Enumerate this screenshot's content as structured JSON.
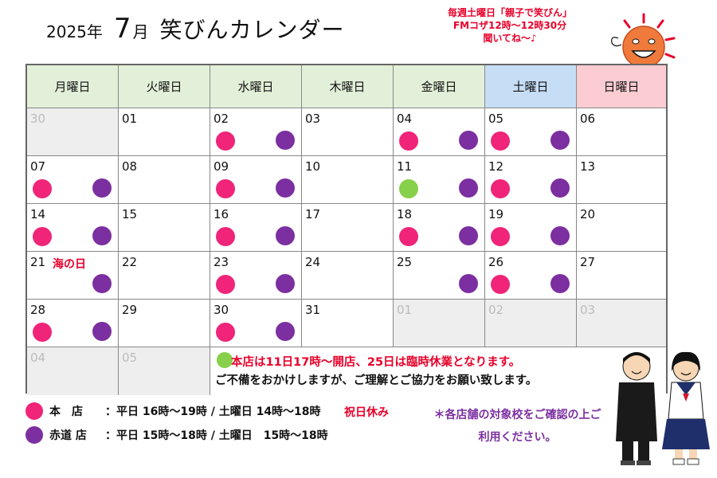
{
  "header": {
    "year": "2025年",
    "month": "7",
    "month_unit": "月",
    "name": "笑びんカレンダー"
  },
  "promo": {
    "line1": "毎週土曜日「親子で笑びん」",
    "line2": "FMコザ12時～12時30分",
    "line3": "聞いてね～♪"
  },
  "weekdays": [
    "月曜日",
    "火曜日",
    "水曜日",
    "木曜日",
    "金曜日",
    "土曜日",
    "日曜日"
  ],
  "weeks": [
    [
      {
        "day": "30",
        "other": true,
        "left": "",
        "right": ""
      },
      {
        "day": "01",
        "left": "",
        "right": ""
      },
      {
        "day": "02",
        "left": "main",
        "right": "akamichi"
      },
      {
        "day": "03",
        "left": "",
        "right": ""
      },
      {
        "day": "04",
        "left": "main",
        "right": "akamichi"
      },
      {
        "day": "05",
        "left": "main",
        "right": "akamichi"
      },
      {
        "day": "06",
        "left": "",
        "right": ""
      }
    ],
    [
      {
        "day": "07",
        "left": "main",
        "right": "akamichi"
      },
      {
        "day": "08",
        "left": "",
        "right": ""
      },
      {
        "day": "09",
        "left": "main",
        "right": "akamichi"
      },
      {
        "day": "10",
        "left": "",
        "right": ""
      },
      {
        "day": "11",
        "left": "special",
        "right": "akamichi"
      },
      {
        "day": "12",
        "left": "main",
        "right": "akamichi"
      },
      {
        "day": "13",
        "left": "",
        "right": ""
      }
    ],
    [
      {
        "day": "14",
        "left": "main",
        "right": "akamichi"
      },
      {
        "day": "15",
        "left": "",
        "right": ""
      },
      {
        "day": "16",
        "left": "main",
        "right": "akamichi"
      },
      {
        "day": "17",
        "left": "",
        "right": ""
      },
      {
        "day": "18",
        "left": "main",
        "right": "akamichi"
      },
      {
        "day": "19",
        "left": "main",
        "right": "akamichi"
      },
      {
        "day": "20",
        "left": "",
        "right": ""
      }
    ],
    [
      {
        "day": "21",
        "holiday": "海の日",
        "left": "",
        "right": "akamichi"
      },
      {
        "day": "22",
        "left": "",
        "right": ""
      },
      {
        "day": "23",
        "left": "main",
        "right": "akamichi"
      },
      {
        "day": "24",
        "left": "",
        "right": ""
      },
      {
        "day": "25",
        "left": "",
        "right": "akamichi"
      },
      {
        "day": "26",
        "left": "main",
        "right": "akamichi"
      },
      {
        "day": "27",
        "left": "",
        "right": ""
      }
    ],
    [
      {
        "day": "28",
        "left": "main",
        "right": "akamichi"
      },
      {
        "day": "29",
        "left": "",
        "right": ""
      },
      {
        "day": "30",
        "left": "main",
        "right": "akamichi"
      },
      {
        "day": "31",
        "left": "",
        "right": ""
      },
      {
        "day": "01",
        "other": true,
        "left": "",
        "right": ""
      },
      {
        "day": "02",
        "other": true,
        "left": "",
        "right": ""
      },
      {
        "day": "03",
        "other": true,
        "left": "",
        "right": ""
      }
    ]
  ],
  "last_week": [
    {
      "day": "04"
    },
    {
      "day": "05"
    }
  ],
  "notice": {
    "line1": "本店は11日17時～開店、25日は臨時休業となります。",
    "line2": "ご不備をおかけしますが、ご理解とご協力をお願い致します。"
  },
  "legend": {
    "main": {
      "name": "本　店",
      "hours": "：平日 16時～19時 / 土曜日 14時～18時"
    },
    "akamichi": {
      "name": "赤道 店",
      "hours": "：平日 15時～18時 / 土曜日　15時～18時"
    },
    "holiday_note": "祝日休み",
    "school_note": "＊各店舗の対象校をご確認の上ご利用ください。"
  },
  "colors": {
    "main": "#f02478",
    "akamichi": "#7b2fa0",
    "special": "#86d04b",
    "accent_red": "#e8002a"
  }
}
